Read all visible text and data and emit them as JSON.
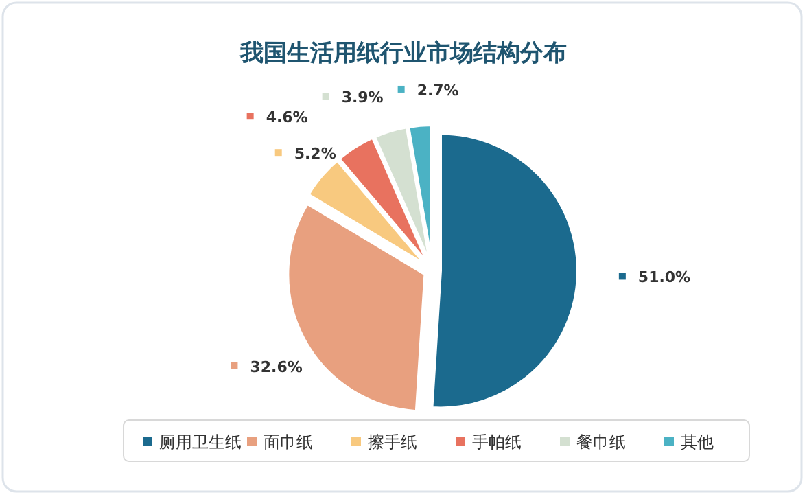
{
  "chart_data": {
    "type": "pie",
    "title": "我国生活用纸行业市场结构分布",
    "categories": [
      "厕用卫生纸",
      "面巾纸",
      "擦手纸",
      "手帕纸",
      "餐巾纸",
      "其他"
    ],
    "values": [
      51.0,
      32.6,
      5.2,
      4.6,
      3.9,
      2.7
    ],
    "colors": [
      "#1b6a8e",
      "#e8a07f",
      "#f8c97f",
      "#e8725f",
      "#d4e0d1",
      "#4bb2c4"
    ],
    "value_labels": [
      "51.0%",
      "32.6%",
      "5.2%",
      "4.6%",
      "3.9%",
      "2.7%"
    ],
    "legend": "bottom"
  }
}
